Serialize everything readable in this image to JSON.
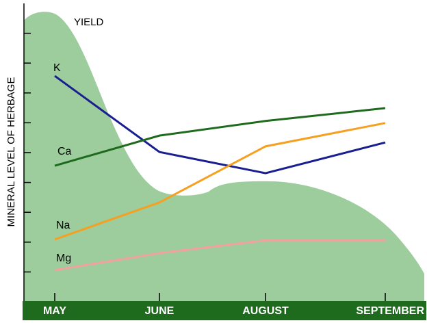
{
  "chart_data": {
    "type": "line",
    "y_label": "MINERAL LEVEL OF HERBAGE",
    "annotation": "YIELD",
    "categories": [
      "MAY",
      "JUNE",
      "AUGUST",
      "SEPTEMBER"
    ],
    "ylim": [
      0,
      10
    ],
    "yticks": [
      1,
      2,
      3,
      4,
      5,
      6,
      7,
      8,
      9
    ],
    "series": [
      {
        "name": "K",
        "color": "#1a1f8f",
        "values": [
          7.57,
          5.02,
          4.31,
          5.34
        ]
      },
      {
        "name": "Ca",
        "color": "#1e6b1e",
        "values": [
          4.56,
          5.57,
          6.06,
          6.49
        ]
      },
      {
        "name": "Na",
        "color": "#f5a020",
        "values": [
          2.09,
          3.33,
          5.21,
          5.99
        ]
      },
      {
        "name": "Mg",
        "color": "#f4a0a0",
        "values": [
          1.06,
          1.63,
          2.06,
          2.06
        ]
      }
    ]
  }
}
